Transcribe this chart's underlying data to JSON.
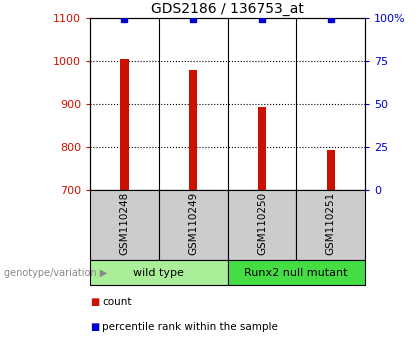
{
  "title": "GDS2186 / 136753_at",
  "samples": [
    "GSM110248",
    "GSM110249",
    "GSM110250",
    "GSM110251"
  ],
  "bar_values": [
    1005,
    980,
    893,
    793
  ],
  "bar_color": "#cc1100",
  "percentile_color": "#0000cc",
  "ylim_left": [
    700,
    1100
  ],
  "ylim_right": [
    0,
    100
  ],
  "yticks_left": [
    700,
    800,
    900,
    1000,
    1100
  ],
  "yticks_right": [
    0,
    25,
    50,
    75,
    100
  ],
  "ytick_right_labels": [
    "0",
    "25",
    "50",
    "75",
    "100%"
  ],
  "groups": [
    {
      "label": "wild type",
      "indices": [
        0,
        1
      ],
      "color": "#aaee99"
    },
    {
      "label": "Runx2 null mutant",
      "indices": [
        2,
        3
      ],
      "color": "#44dd44"
    }
  ],
  "group_label_prefix": "genotype/variation",
  "legend_count_label": "count",
  "legend_percentile_label": "percentile rank within the sample",
  "bar_width": 0.12,
  "sample_box_color": "#cccccc",
  "title_fontsize": 10,
  "axis_fontsize": 8,
  "label_fontsize": 7.5
}
